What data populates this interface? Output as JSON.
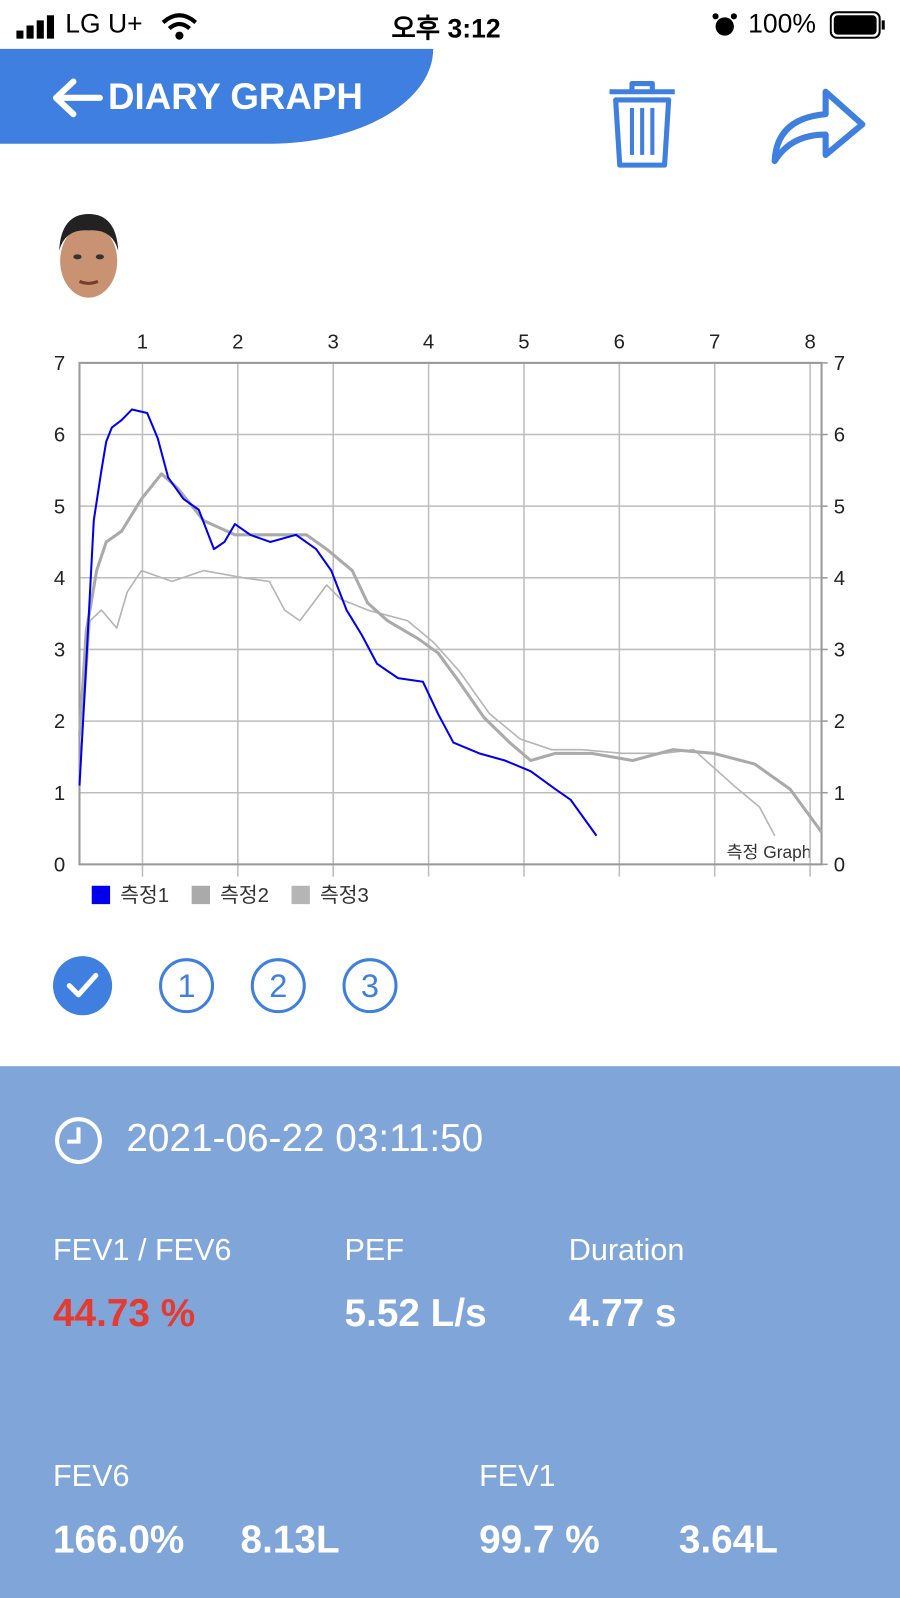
{
  "status_bar": {
    "carrier": "LG U+",
    "time": "오후 3:12",
    "battery": "100%"
  },
  "header": {
    "title": "DIARY GRAPH"
  },
  "chart_data": {
    "type": "line",
    "annotation": "측정 Graph",
    "xlim": [
      0.34,
      8.12
    ],
    "xticks": [
      1,
      2,
      3,
      4,
      5,
      6,
      7,
      8
    ],
    "ylim": [
      0,
      7
    ],
    "yticks": [
      0,
      1,
      2,
      3,
      4,
      5,
      6,
      7
    ],
    "y2lim": [
      0,
      7
    ],
    "y2ticks": [
      0,
      1,
      2,
      3,
      4,
      5,
      6,
      7
    ],
    "grid": true,
    "legend": "bottom-left",
    "series": [
      {
        "name": "측정1",
        "color": "#0000ee",
        "x": [
          0.34,
          0.41,
          0.49,
          0.57,
          0.62,
          0.68,
          0.78,
          0.89,
          1.05,
          1.16,
          1.27,
          1.43,
          1.59,
          1.75,
          1.86,
          1.97,
          2.13,
          2.34,
          2.61,
          2.82,
          2.98,
          3.14,
          3.3,
          3.46,
          3.68,
          3.94,
          4.1,
          4.26,
          4.53,
          4.8,
          5.07,
          5.33,
          5.49,
          5.76
        ],
        "values": [
          1.1,
          2.8,
          4.8,
          5.5,
          5.9,
          6.1,
          6.2,
          6.35,
          6.3,
          5.95,
          5.4,
          5.1,
          4.95,
          4.4,
          4.5,
          4.75,
          4.6,
          4.5,
          4.6,
          4.4,
          4.1,
          3.55,
          3.2,
          2.8,
          2.6,
          2.55,
          2.1,
          1.7,
          1.55,
          1.45,
          1.3,
          1.05,
          0.9,
          0.4
        ]
      },
      {
        "name": "측정2",
        "color": "#aaaaaa",
        "x": [
          0.34,
          0.41,
          0.52,
          0.62,
          0.78,
          0.99,
          1.2,
          1.37,
          1.64,
          1.97,
          2.29,
          2.72,
          2.93,
          3.2,
          3.36,
          3.57,
          3.89,
          4.1,
          4.32,
          4.58,
          4.85,
          5.07,
          5.33,
          5.71,
          6.14,
          6.56,
          6.99,
          7.42,
          7.79,
          8.12
        ],
        "values": [
          1.8,
          3.25,
          4.1,
          4.5,
          4.65,
          5.1,
          5.45,
          5.25,
          4.8,
          4.6,
          4.6,
          4.6,
          4.4,
          4.1,
          3.65,
          3.4,
          3.15,
          2.95,
          2.55,
          2.05,
          1.7,
          1.45,
          1.55,
          1.55,
          1.45,
          1.6,
          1.55,
          1.4,
          1.05,
          0.45
        ]
      },
      {
        "name": "측정3",
        "color": "#b5b5b5",
        "x": [
          0.34,
          0.45,
          0.57,
          0.73,
          0.84,
          0.99,
          1.31,
          1.64,
          2.06,
          2.33,
          2.49,
          2.65,
          2.82,
          2.93,
          3.08,
          3.36,
          3.78,
          4.05,
          4.32,
          4.64,
          4.96,
          5.29,
          5.61,
          6.03,
          6.46,
          6.78,
          7.2,
          7.47,
          7.63
        ],
        "values": [
          1.25,
          3.4,
          3.55,
          3.3,
          3.8,
          4.1,
          3.95,
          4.1,
          4.0,
          3.95,
          3.55,
          3.4,
          3.7,
          3.9,
          3.7,
          3.55,
          3.4,
          3.1,
          2.7,
          2.1,
          1.75,
          1.6,
          1.6,
          1.55,
          1.55,
          1.6,
          1.1,
          0.8,
          0.4
        ]
      }
    ]
  },
  "selector": [
    "1",
    "2",
    "3"
  ],
  "result": {
    "timestamp": "2021-06-22 03:11:50",
    "metrics": [
      {
        "label": "FEV1 / FEV6",
        "value": "44.73 %"
      },
      {
        "label": "PEF",
        "value": "5.52 L/s"
      },
      {
        "label": "Duration",
        "value": "4.77 s"
      }
    ],
    "fev6": {
      "label": "FEV6",
      "percent": "166.0%",
      "volume": "8.13L"
    },
    "fev1": {
      "label": "FEV1",
      "percent": "99.7 %",
      "volume": "3.64L"
    }
  }
}
